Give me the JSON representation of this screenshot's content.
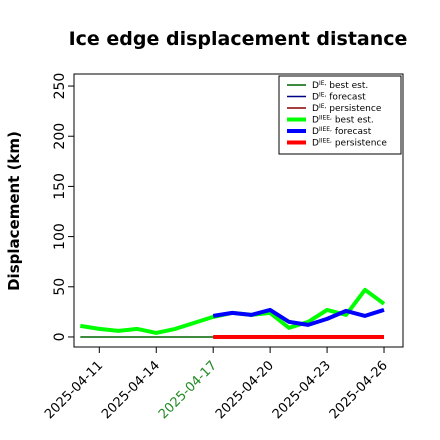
{
  "chart_data": {
    "type": "line",
    "title": "Ice edge displacement distance",
    "xlabel": "",
    "ylabel": "Displacement (km)",
    "ylim": [
      -10,
      262
    ],
    "xlim": [
      "2025-04-09T16:00",
      "2025-04-27T00:00"
    ],
    "yticks": [
      "0",
      "50",
      "100",
      "150",
      "200",
      "250"
    ],
    "ytick_values": [
      0,
      50,
      100,
      150,
      200,
      250
    ],
    "xticks": [
      "2025-04-11",
      "2025-04-14",
      "2025-04-17",
      "2025-04-20",
      "2025-04-23",
      "2025-04-26"
    ],
    "highlight_xtick": "2025-04-17",
    "highlight_color": "#228b22",
    "grid": false,
    "legend_position": "top-right",
    "legend": [
      "D^IE, best est.",
      "D^IE, forecast",
      "D^IE, persistence",
      "D^IIEE, best est.",
      "D^IIEE, forecast",
      "D^IIEE, persistence"
    ],
    "series": [
      {
        "name": "D^IE, best est.",
        "color": "#006400",
        "width": 1.5,
        "x": [
          "2025-04-10",
          "2025-04-17"
        ],
        "values": [
          0,
          0
        ]
      },
      {
        "name": "D^IE, forecast",
        "color": "#00008b",
        "width": 1.5,
        "x": [
          "2025-04-17",
          "2025-04-26"
        ],
        "values": [
          0,
          0
        ]
      },
      {
        "name": "D^IE, persistence",
        "color": "#8b0000",
        "width": 1.5,
        "x": [
          "2025-04-17",
          "2025-04-26"
        ],
        "values": [
          0,
          0
        ]
      },
      {
        "name": "D^IIEE, best est.",
        "color": "#00ff00",
        "width": 4,
        "x": [
          "2025-04-10",
          "2025-04-11",
          "2025-04-12",
          "2025-04-13",
          "2025-04-14",
          "2025-04-15",
          "2025-04-16",
          "2025-04-17",
          "2025-04-18",
          "2025-04-19",
          "2025-04-20",
          "2025-04-21",
          "2025-04-22",
          "2025-04-23",
          "2025-04-24",
          "2025-04-25",
          "2025-04-26"
        ],
        "values": [
          11,
          8,
          6,
          8,
          4,
          8,
          14,
          20,
          24,
          22,
          24,
          9,
          15,
          27,
          22,
          47,
          33
        ]
      },
      {
        "name": "D^IIEE, forecast",
        "color": "#0000ff",
        "width": 4,
        "x": [
          "2025-04-17",
          "2025-04-18",
          "2025-04-19",
          "2025-04-20",
          "2025-04-21",
          "2025-04-22",
          "2025-04-23",
          "2025-04-24",
          "2025-04-25",
          "2025-04-26"
        ],
        "values": [
          21,
          24,
          22,
          27,
          15,
          12,
          18,
          26,
          21,
          27
        ]
      },
      {
        "name": "D^IIEE, persistence",
        "color": "#ff0000",
        "width": 4,
        "x": [
          "2025-04-17",
          "2025-04-26"
        ],
        "values": [
          0,
          0
        ]
      }
    ]
  }
}
